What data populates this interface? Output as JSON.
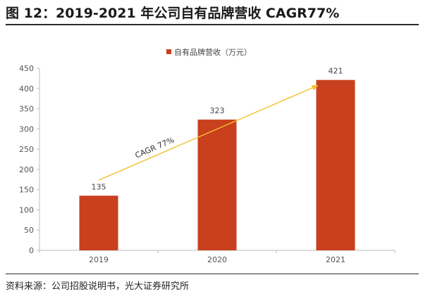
{
  "figure": {
    "title": "图 12：2019-2021 年公司自有品牌营收 CAGR77%",
    "source": "资料来源：公司招股说明书，光大证券研究所"
  },
  "chart_data": {
    "type": "bar",
    "categories": [
      "2019",
      "2020",
      "2021"
    ],
    "series": [
      {
        "name": "自有品牌营收（万元）",
        "values": [
          135,
          323,
          421
        ],
        "color": "#C8401E"
      }
    ],
    "ylim": [
      0,
      450
    ],
    "yticks": [
      0,
      50,
      100,
      150,
      200,
      250,
      300,
      350,
      400,
      450
    ],
    "data_labels": [
      "135",
      "323",
      "421"
    ],
    "legend_position": "top-center",
    "grid": false,
    "annotation": {
      "text": "CAGR 77%",
      "from": "2019",
      "to": "2021",
      "color": "#F2C12E"
    }
  }
}
